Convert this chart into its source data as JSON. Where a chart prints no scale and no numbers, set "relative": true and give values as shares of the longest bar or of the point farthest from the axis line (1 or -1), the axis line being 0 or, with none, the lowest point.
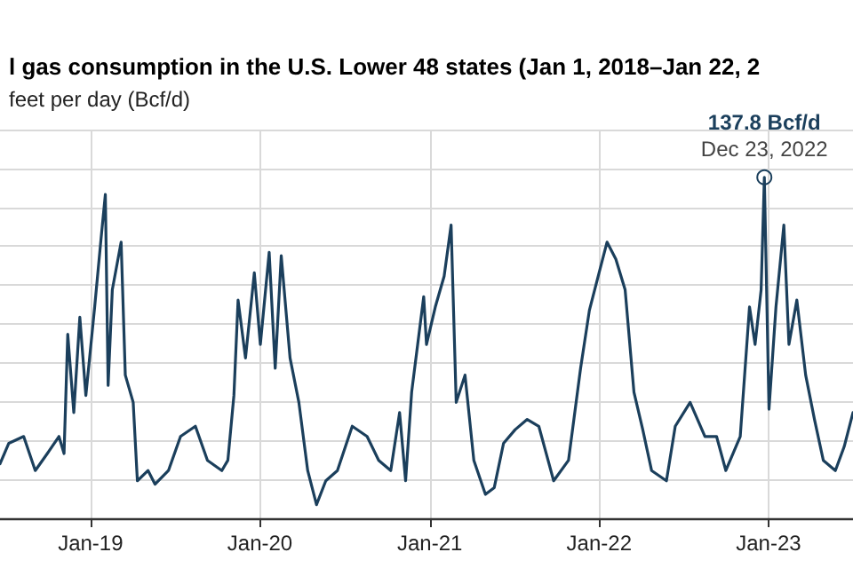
{
  "chart_data": {
    "type": "line",
    "title": "l gas consumption in the U.S. Lower 48 states (Jan 1, 2018–Jan 22, 2",
    "subtitle": "feet per day (Bcf/d)",
    "relative": true,
    "grid": true,
    "marker": "none",
    "line_style": "solid",
    "xlim": [
      "2018-06-20",
      "2023-07-02"
    ],
    "xticks": [
      {
        "value": "2019-01-01",
        "label": "Jan-19"
      },
      {
        "value": "2020-01-01",
        "label": "Jan-20"
      },
      {
        "value": "2021-01-01",
        "label": "Jan-21"
      },
      {
        "value": "2022-01-01",
        "label": "Jan-22"
      },
      {
        "value": "2023-01-01",
        "label": "Jan-23"
      }
    ],
    "annotations": [
      {
        "text": "137.8 Bcf/d\nDec 23, 2022",
        "x": "2022-12-23",
        "y": 1
      }
    ],
    "series": [
      {
        "color": "#1b3f5c",
        "x": [
          "2018-06-20",
          "2018-07-09",
          "2018-08-10",
          "2018-09-04",
          "2018-09-30",
          "2018-10-25",
          "2018-11-05",
          "2018-11-13",
          "2018-11-26",
          "2018-12-09",
          "2018-12-22",
          "2019-01-10",
          "2019-01-23",
          "2019-02-02",
          "2019-02-08",
          "2019-02-17",
          "2019-03-08",
          "2019-03-17",
          "2019-04-03",
          "2019-04-12",
          "2019-05-05",
          "2019-05-20",
          "2019-06-18",
          "2019-07-14",
          "2019-08-15",
          "2019-09-10",
          "2019-10-11",
          "2019-10-24",
          "2019-11-06",
          "2019-11-15",
          "2019-12-01",
          "2019-12-20",
          "2020-01-02",
          "2020-01-21",
          "2020-02-03",
          "2020-02-16",
          "2020-03-06",
          "2020-03-25",
          "2020-04-13",
          "2020-05-02",
          "2020-05-22",
          "2020-06-16",
          "2020-07-18",
          "2020-08-19",
          "2020-09-13",
          "2020-10-09",
          "2020-10-28",
          "2020-11-10",
          "2020-11-23",
          "2020-12-06",
          "2020-12-19",
          "2020-12-25",
          "2021-01-13",
          "2021-02-01",
          "2021-02-16",
          "2021-02-27",
          "2021-03-18",
          "2021-04-06",
          "2021-05-01",
          "2021-05-20",
          "2021-06-09",
          "2021-07-04",
          "2021-07-30",
          "2021-08-24",
          "2021-09-25",
          "2021-10-27",
          "2021-11-22",
          "2021-12-11",
          "2021-12-30",
          "2022-01-18",
          "2022-02-06",
          "2022-02-26",
          "2022-03-17",
          "2022-04-05",
          "2022-04-24",
          "2022-05-26",
          "2022-06-14",
          "2022-07-16",
          "2022-08-17",
          "2022-09-11",
          "2022-10-01",
          "2022-11-01",
          "2022-11-21",
          "2022-12-03",
          "2022-12-16",
          "2022-12-23",
          "2023-01-02",
          "2023-01-17",
          "2023-02-03",
          "2023-02-14",
          "2023-03-03",
          "2023-03-22",
          "2023-04-10",
          "2023-04-29",
          "2023-05-25",
          "2023-06-13",
          "2023-07-02"
        ],
        "values": [
          0.16,
          0.22,
          0.24,
          0.14,
          0.19,
          0.24,
          0.19,
          0.54,
          0.31,
          0.59,
          0.36,
          0.62,
          0.81,
          0.95,
          0.39,
          0.67,
          0.81,
          0.42,
          0.34,
          0.11,
          0.14,
          0.1,
          0.14,
          0.24,
          0.27,
          0.17,
          0.14,
          0.17,
          0.36,
          0.64,
          0.47,
          0.72,
          0.51,
          0.78,
          0.44,
          0.77,
          0.47,
          0.34,
          0.14,
          0.04,
          0.11,
          0.14,
          0.27,
          0.24,
          0.17,
          0.14,
          0.31,
          0.11,
          0.37,
          0.51,
          0.65,
          0.51,
          0.62,
          0.71,
          0.86,
          0.34,
          0.42,
          0.17,
          0.07,
          0.09,
          0.22,
          0.26,
          0.29,
          0.27,
          0.11,
          0.17,
          0.44,
          0.61,
          0.71,
          0.81,
          0.76,
          0.67,
          0.37,
          0.26,
          0.14,
          0.11,
          0.27,
          0.34,
          0.24,
          0.24,
          0.14,
          0.24,
          0.62,
          0.51,
          0.67,
          1,
          0.32,
          0.62,
          0.86,
          0.51,
          0.64,
          0.42,
          0.29,
          0.17,
          0.14,
          0.21,
          0.31
        ]
      }
    ]
  }
}
